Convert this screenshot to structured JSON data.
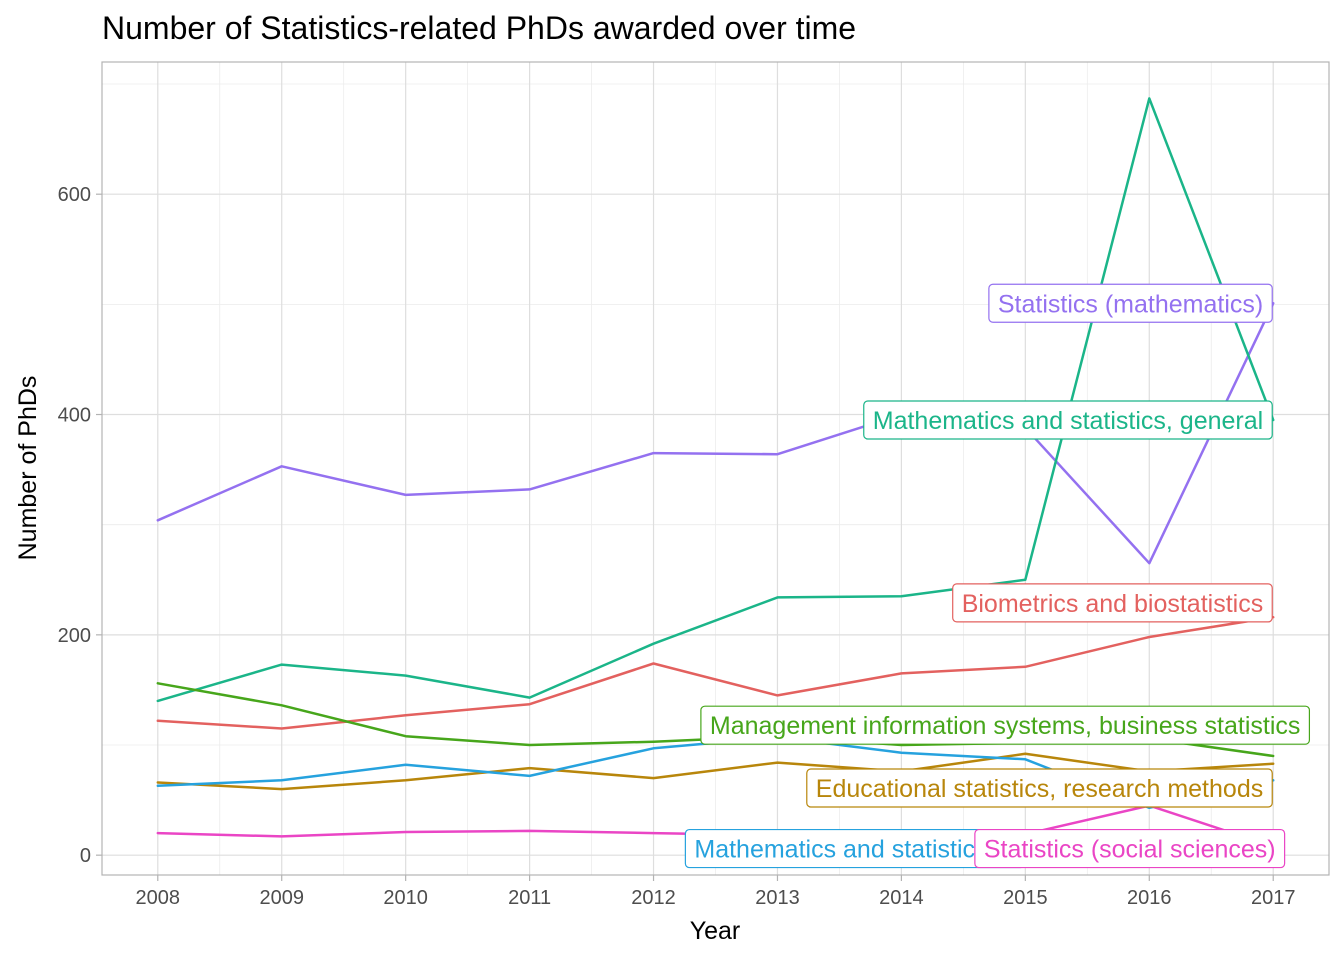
{
  "chart_data": {
    "type": "line",
    "title": "Number of Statistics-related PhDs awarded over time",
    "xlabel": "Year",
    "ylabel": "Number of PhDs",
    "x": [
      2008,
      2009,
      2010,
      2011,
      2012,
      2013,
      2014,
      2015,
      2016,
      2017
    ],
    "xlim": [
      2007.55,
      2017.45
    ],
    "ylim": [
      -18,
      720
    ],
    "yticks": [
      0,
      200,
      400,
      600
    ],
    "grid": true,
    "legend": "direct labels",
    "series": [
      {
        "name": "Statistics (mathematics)",
        "color": "#9471f0",
        "values": [
          304,
          353,
          327,
          332,
          365,
          364,
          400,
          388,
          265,
          501
        ]
      },
      {
        "name": "Mathematics and statistics, general",
        "color": "#1bb589",
        "values": [
          140,
          173,
          163,
          143,
          192,
          234,
          235,
          250,
          687,
          395
        ]
      },
      {
        "name": "Biometrics and biostatistics",
        "color": "#e3615f",
        "values": [
          122,
          115,
          127,
          137,
          174,
          145,
          165,
          171,
          198,
          216
        ]
      },
      {
        "name": "Management information systems, business statistics",
        "color": "#47a61b",
        "values": [
          156,
          136,
          108,
          100,
          103,
          108,
          100,
          102,
          106,
          90
        ]
      },
      {
        "name": "Educational statistics, research methods",
        "color": "#b8860b",
        "values": [
          66,
          60,
          68,
          79,
          70,
          84,
          76,
          92,
          76,
          83
        ]
      },
      {
        "name": "Mathematics and statistics, other",
        "color": "#26a2de",
        "values": [
          63,
          68,
          82,
          72,
          97,
          107,
          93,
          87,
          43,
          68
        ]
      },
      {
        "name": "Statistics (social sciences)",
        "color": "#ea45c5",
        "values": [
          20,
          17,
          21,
          22,
          20,
          18,
          17,
          19,
          45,
          8
        ]
      }
    ],
    "annotations": [
      {
        "text": "Statistics (mathematics)",
        "series": 0,
        "at_x": 2017,
        "at_y": 501
      },
      {
        "text": "Mathematics and statistics, general",
        "series": 1,
        "at_x": 2017,
        "at_y": 395
      },
      {
        "text": "Biometrics and biostatistics",
        "series": 2,
        "at_x": 2017,
        "at_y": 229
      },
      {
        "text": "Management information systems, business statistics",
        "series": 3,
        "at_x": 2017.3,
        "at_y": 118
      },
      {
        "text": "Educational statistics, research methods",
        "series": 4,
        "at_x": 2017,
        "at_y": 61
      },
      {
        "text": "Mathematics and statistics, o",
        "series": 5,
        "at_x": 2015,
        "at_y": 6
      },
      {
        "text": "Statistics (social sciences)",
        "series": 6,
        "at_x": 2017.1,
        "at_y": 6
      }
    ]
  }
}
